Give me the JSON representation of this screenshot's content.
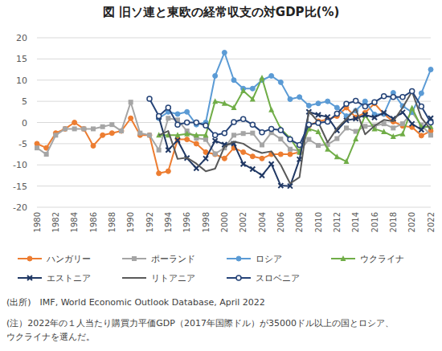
{
  "chart_data": {
    "type": "line",
    "title": "図 旧ソ連と東欧の経常収支の対GDP比(%)",
    "x": [
      1980,
      1981,
      1982,
      1983,
      1984,
      1985,
      1986,
      1987,
      1988,
      1989,
      1990,
      1991,
      1992,
      1993,
      1994,
      1995,
      1996,
      1997,
      1998,
      1999,
      2000,
      2001,
      2002,
      2003,
      2004,
      2005,
      2006,
      2007,
      2008,
      2009,
      2010,
      2011,
      2012,
      2013,
      2014,
      2015,
      2016,
      2017,
      2018,
      2019,
      2020,
      2021,
      2022
    ],
    "xlim": [
      1980,
      2022
    ],
    "xticks": [
      1980,
      1982,
      1984,
      1986,
      1988,
      1990,
      1992,
      1994,
      1996,
      1998,
      2000,
      2002,
      2004,
      2006,
      2008,
      2010,
      2012,
      2014,
      2016,
      2018,
      2020,
      2022
    ],
    "ylim": [
      -20,
      20
    ],
    "yticks": [
      -20,
      -15,
      -10,
      -5,
      0,
      5,
      10,
      15,
      20
    ],
    "grid": true,
    "legend": "bottom",
    "series": [
      {
        "name": "ハンガリー",
        "color": "#ed7d31",
        "marker": "circle",
        "values": [
          -5,
          -6,
          -2.5,
          -1.5,
          0,
          -1.5,
          -5.5,
          -3,
          -2.5,
          -2,
          1,
          -3,
          -3,
          -12,
          -11.5,
          -4,
          -4,
          -5,
          -7,
          -7.5,
          -8.5,
          -6,
          -7,
          -8,
          -8.5,
          -7.5,
          -7.5,
          -7.5,
          -7,
          -0.8,
          0.3,
          0.7,
          1.5,
          3.5,
          1.2,
          2.3,
          4.5,
          2,
          0.2,
          -0.8,
          -1.1,
          -3.1,
          -2
        ]
      },
      {
        "name": "ポーランド",
        "color": "#a5a5a5",
        "marker": "square",
        "values": [
          -6,
          -7.5,
          -3,
          -1.5,
          -1.5,
          -1.5,
          -1.5,
          -1,
          -0.5,
          -2,
          4.8,
          -2.5,
          -3,
          -6.5,
          1,
          0.6,
          -2,
          -3.7,
          -4,
          -7.4,
          -6,
          -3,
          -2.6,
          -2.5,
          -5.3,
          -2.4,
          -3.9,
          -6.3,
          -6.7,
          -4,
          -5.4,
          -5.2,
          -3.8,
          -1.3,
          -2.1,
          -0.9,
          -0.8,
          -0.3,
          -1.3,
          -0.3,
          2.4,
          -0.6,
          -3
        ]
      },
      {
        "name": "ロシア",
        "color": "#5b9bd5",
        "marker": "circle",
        "values": [
          null,
          null,
          null,
          null,
          null,
          null,
          null,
          null,
          null,
          null,
          null,
          null,
          null,
          1,
          2.5,
          2,
          2.5,
          -0.5,
          0,
          11,
          16.5,
          10,
          8,
          8,
          10,
          11,
          9.5,
          5.5,
          6,
          4,
          4.5,
          5,
          3.5,
          1.5,
          2.8,
          5,
          1.9,
          2,
          7,
          3.9,
          2.4,
          6.9,
          12.5
        ]
      },
      {
        "name": "ウクライナ",
        "color": "#70ad47",
        "marker": "triangle",
        "values": [
          null,
          null,
          null,
          null,
          null,
          null,
          null,
          null,
          null,
          null,
          null,
          null,
          null,
          -3,
          -3,
          -3,
          -2.7,
          -3,
          -3,
          5,
          4.5,
          3.5,
          7.5,
          5.5,
          10.5,
          3,
          -1.5,
          -3.7,
          -7,
          -1.5,
          -2.2,
          -6.3,
          -8.1,
          -9.2,
          -3.9,
          1.7,
          -1.5,
          -2.2,
          -3.3,
          -2.7,
          3.4,
          -1.1,
          -1
        ]
      },
      {
        "name": "エストニア",
        "color": "#203864",
        "marker": "x",
        "values": [
          null,
          null,
          null,
          null,
          null,
          null,
          null,
          null,
          null,
          null,
          null,
          null,
          null,
          1.3,
          -6.5,
          -4.2,
          -8.4,
          -10.8,
          -8.5,
          -4.3,
          -5.2,
          -5,
          -9.8,
          -11,
          -12.5,
          -9.8,
          -14.9,
          -15,
          -8.7,
          2.5,
          1.8,
          1.3,
          -1.9,
          0.5,
          0.9,
          1.8,
          1.2,
          2.3,
          0.9,
          2.4,
          -0.3,
          -1.7,
          1
        ]
      },
      {
        "name": "リトアニア",
        "color": "#595959",
        "marker": "none",
        "values": [
          null,
          null,
          null,
          null,
          null,
          null,
          null,
          null,
          null,
          null,
          null,
          null,
          null,
          -3,
          -2,
          -8.6,
          -8.3,
          -9.7,
          -11.5,
          -10.9,
          -5.7,
          -4.5,
          -5,
          -6.4,
          -7.2,
          -6.8,
          -10,
          -14.4,
          -12.9,
          2.7,
          0.1,
          -4.7,
          -1.4,
          0.8,
          3.2,
          -2.8,
          -0.8,
          0.6,
          0.3,
          3.5,
          7.3,
          1.1,
          -1.7
        ]
      },
      {
        "name": "スロベニア",
        "color": "#264478",
        "marker": "circle-open",
        "values": [
          null,
          null,
          null,
          null,
          null,
          null,
          null,
          null,
          null,
          null,
          null,
          null,
          5.6,
          1.5,
          3.5,
          -0.5,
          0,
          0,
          -0.7,
          -3,
          -2.5,
          0.1,
          0.8,
          -0.5,
          -2.3,
          -1.5,
          -1.8,
          -4,
          -5.3,
          -0.5,
          -0.1,
          0.2,
          2.1,
          4.4,
          5.1,
          3.8,
          4.8,
          6.2,
          6,
          6,
          7.4,
          3.8,
          0
        ]
      }
    ],
    "annotations": [
      "(出所)　IMF, World Economic Outlook Database, April 2022",
      "(注）2022年の１人当たり購買力平価GDP（2017年国際ドル）が35000ドル以上の国とロシア、",
      "ウクライナを選んだ。"
    ]
  }
}
